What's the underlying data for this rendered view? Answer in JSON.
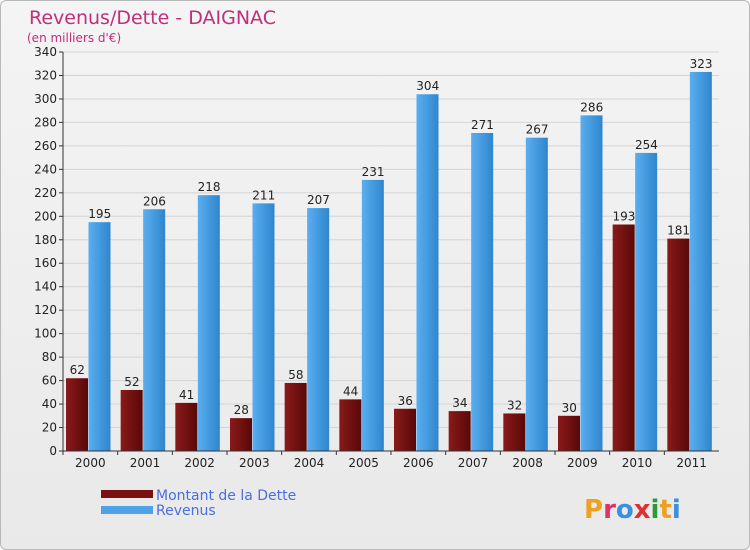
{
  "chart_data": {
    "type": "bar",
    "title": "Revenus/Dette - DAIGNAC",
    "subtitle": "(en milliers d'€)",
    "categories": [
      "2000",
      "2001",
      "2002",
      "2003",
      "2004",
      "2005",
      "2006",
      "2007",
      "2008",
      "2009",
      "2010",
      "2011"
    ],
    "series": [
      {
        "name": "Montant de la Dette",
        "values": [
          62,
          52,
          41,
          28,
          58,
          44,
          36,
          34,
          32,
          30,
          193,
          181
        ],
        "color": "#7a1010"
      },
      {
        "name": "Revenus",
        "values": [
          195,
          206,
          218,
          211,
          207,
          231,
          304,
          271,
          267,
          286,
          254,
          323
        ],
        "color": "#4da3e6"
      }
    ],
    "ylim": [
      0,
      340
    ],
    "yticks": [
      0,
      20,
      40,
      60,
      80,
      100,
      120,
      140,
      160,
      180,
      200,
      220,
      240,
      260,
      280,
      300,
      320,
      340
    ],
    "grid": true,
    "legend_position": "bottom-left",
    "colors": {
      "title": "#c0307a",
      "legend_text": "#4a6ee0",
      "grid": "#d4d4d4"
    }
  },
  "logo": {
    "text": "Proxiti"
  }
}
